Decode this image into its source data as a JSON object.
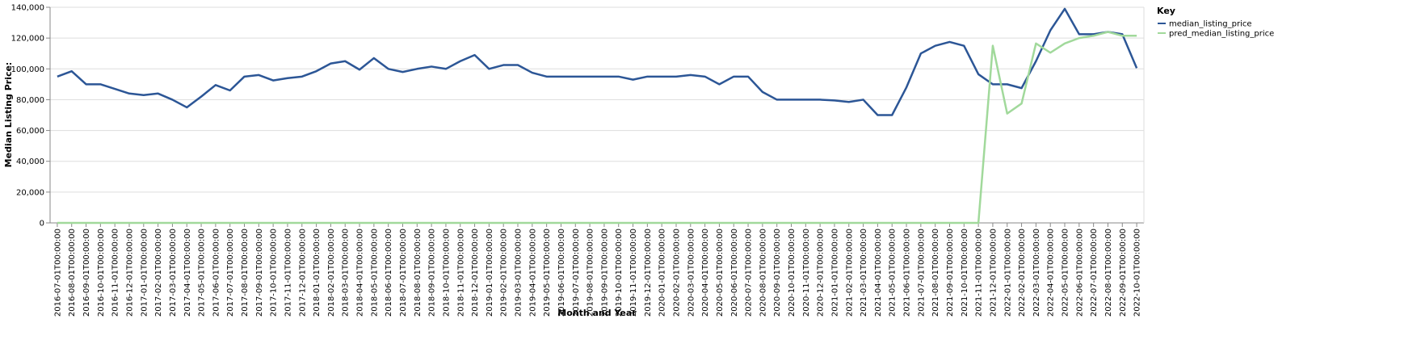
{
  "chart_data": {
    "type": "line",
    "x_label": "Month and Year",
    "y_label": "Median Listing Price:",
    "legend_title": "Key",
    "legend_position": "right",
    "grid": true,
    "categories": [
      "2016-07-01T00:00:00",
      "2016-08-01T00:00:00",
      "2016-09-01T00:00:00",
      "2016-10-01T00:00:00",
      "2016-11-01T00:00:00",
      "2016-12-01T00:00:00",
      "2017-01-01T00:00:00",
      "2017-02-01T00:00:00",
      "2017-03-01T00:00:00",
      "2017-04-01T00:00:00",
      "2017-05-01T00:00:00",
      "2017-06-01T00:00:00",
      "2017-07-01T00:00:00",
      "2017-08-01T00:00:00",
      "2017-09-01T00:00:00",
      "2017-10-01T00:00:00",
      "2017-11-01T00:00:00",
      "2017-12-01T00:00:00",
      "2018-01-01T00:00:00",
      "2018-02-01T00:00:00",
      "2018-03-01T00:00:00",
      "2018-04-01T00:00:00",
      "2018-05-01T00:00:00",
      "2018-06-01T00:00:00",
      "2018-07-01T00:00:00",
      "2018-08-01T00:00:00",
      "2018-09-01T00:00:00",
      "2018-10-01T00:00:00",
      "2018-11-01T00:00:00",
      "2018-12-01T00:00:00",
      "2019-01-01T00:00:00",
      "2019-02-01T00:00:00",
      "2019-03-01T00:00:00",
      "2019-04-01T00:00:00",
      "2019-05-01T00:00:00",
      "2019-06-01T00:00:00",
      "2019-07-01T00:00:00",
      "2019-08-01T00:00:00",
      "2019-09-01T00:00:00",
      "2019-10-01T00:00:00",
      "2019-11-01T00:00:00",
      "2019-12-01T00:00:00",
      "2020-01-01T00:00:00",
      "2020-02-01T00:00:00",
      "2020-03-01T00:00:00",
      "2020-04-01T00:00:00",
      "2020-05-01T00:00:00",
      "2020-06-01T00:00:00",
      "2020-07-01T00:00:00",
      "2020-08-01T00:00:00",
      "2020-09-01T00:00:00",
      "2020-10-01T00:00:00",
      "2020-11-01T00:00:00",
      "2020-12-01T00:00:00",
      "2021-01-01T00:00:00",
      "2021-02-01T00:00:00",
      "2021-03-01T00:00:00",
      "2021-04-01T00:00:00",
      "2021-05-01T00:00:00",
      "2021-06-01T00:00:00",
      "2021-07-01T00:00:00",
      "2021-08-01T00:00:00",
      "2021-09-01T00:00:00",
      "2021-10-01T00:00:00",
      "2021-11-01T00:00:00",
      "2021-12-01T00:00:00",
      "2022-01-01T00:00:00",
      "2022-02-01T00:00:00",
      "2022-03-01T00:00:00",
      "2022-04-01T00:00:00",
      "2022-05-01T00:00:00",
      "2022-06-01T00:00:00",
      "2022-07-01T00:00:00",
      "2022-08-01T00:00:00",
      "2022-09-01T00:00:00",
      "2022-10-01T00:00:00"
    ],
    "series": [
      {
        "name": "median_listing_price",
        "color": "#2c5696",
        "values": [
          95000,
          98500,
          90000,
          90000,
          87000,
          84000,
          83000,
          84000,
          80000,
          75000,
          82000,
          89500,
          86000,
          95000,
          96000,
          92500,
          94000,
          95000,
          98500,
          103500,
          105000,
          99500,
          107000,
          100000,
          98000,
          100000,
          101500,
          100000,
          105000,
          109000,
          100000,
          102500,
          102500,
          97500,
          95000,
          95000,
          95000,
          95000,
          95000,
          95000,
          93000,
          95000,
          95000,
          95000,
          96000,
          95000,
          90000,
          95000,
          95000,
          85000,
          80000,
          80000,
          80000,
          80000,
          79500,
          78500,
          80000,
          70000,
          70000,
          88000,
          110000,
          115000,
          117500,
          115000,
          96500,
          90000,
          90000,
          87500,
          105000,
          125000,
          139000,
          122500,
          122500,
          124000,
          122500,
          100500
        ]
      },
      {
        "name": "pred_median_listing_price",
        "color": "#a1d99b",
        "values": [
          0,
          0,
          0,
          0,
          0,
          0,
          0,
          0,
          0,
          0,
          0,
          0,
          0,
          0,
          0,
          0,
          0,
          0,
          0,
          0,
          0,
          0,
          0,
          0,
          0,
          0,
          0,
          0,
          0,
          0,
          0,
          0,
          0,
          0,
          0,
          0,
          0,
          0,
          0,
          0,
          0,
          0,
          0,
          0,
          0,
          0,
          0,
          0,
          0,
          0,
          0,
          0,
          0,
          0,
          0,
          0,
          0,
          0,
          0,
          0,
          0,
          0,
          0,
          0,
          0,
          115000,
          71000,
          77500,
          116500,
          110500,
          116500,
          120000,
          121500,
          124000,
          121500,
          121500
        ]
      }
    ],
    "ylim": [
      0,
      140000
    ],
    "yticks": [
      0,
      {
        "value": 20000,
        "label": "20,000"
      },
      {
        "value": 40000,
        "label": "40,000"
      },
      {
        "value": 60000,
        "label": "60,000"
      },
      {
        "value": 80000,
        "label": "80,000"
      },
      {
        "value": 100000,
        "label": "100,000"
      },
      {
        "value": 120000,
        "label": "120,000"
      },
      {
        "value": 140000,
        "label": "140,000"
      }
    ]
  }
}
